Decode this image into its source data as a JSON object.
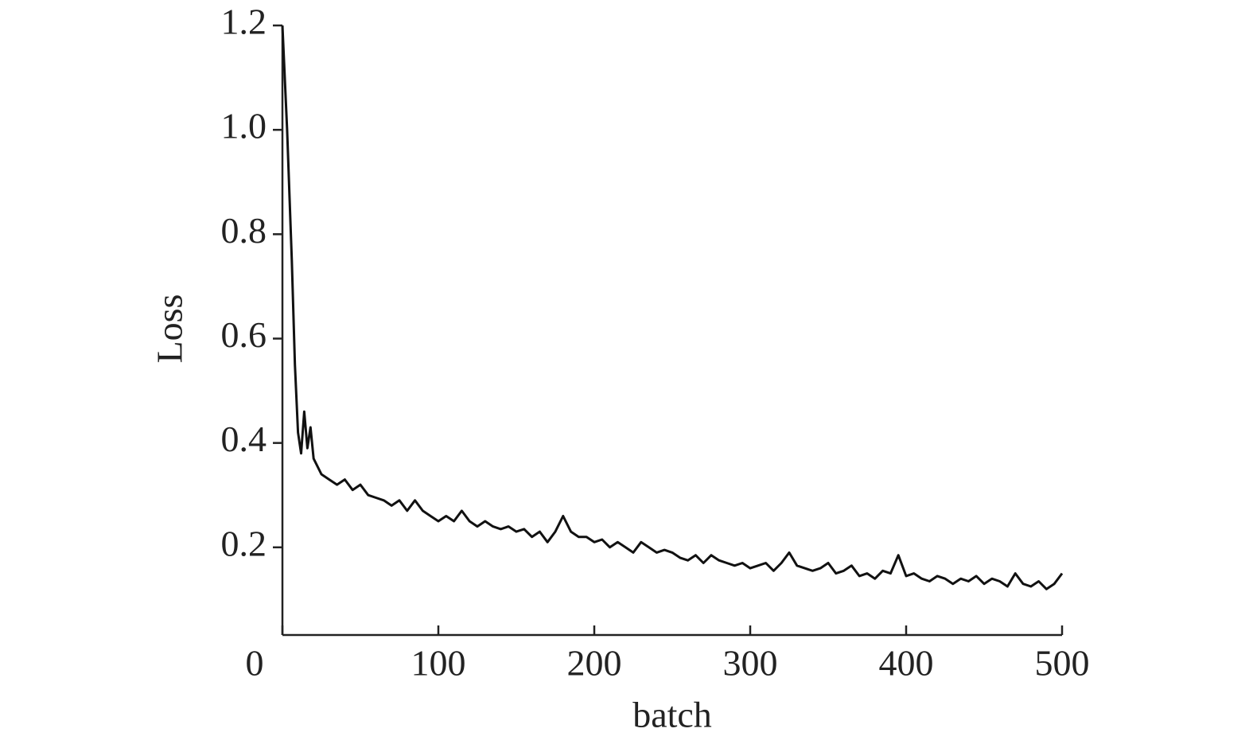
{
  "chart_data": {
    "type": "line",
    "xlabel": "batch",
    "ylabel": "Loss",
    "color": "#111111",
    "x": [
      0,
      3,
      6,
      8,
      10,
      12,
      14,
      16,
      18,
      20,
      25,
      30,
      35,
      40,
      45,
      50,
      55,
      60,
      65,
      70,
      75,
      80,
      85,
      90,
      95,
      100,
      105,
      110,
      115,
      120,
      125,
      130,
      135,
      140,
      145,
      150,
      155,
      160,
      165,
      170,
      175,
      180,
      185,
      190,
      195,
      200,
      205,
      210,
      215,
      220,
      225,
      230,
      235,
      240,
      245,
      250,
      255,
      260,
      265,
      270,
      275,
      280,
      285,
      290,
      295,
      300,
      305,
      310,
      315,
      320,
      325,
      330,
      335,
      340,
      345,
      350,
      355,
      360,
      365,
      370,
      375,
      380,
      385,
      390,
      395,
      400,
      405,
      410,
      415,
      420,
      425,
      430,
      435,
      440,
      445,
      450,
      455,
      460,
      465,
      470,
      475,
      480,
      485,
      490,
      495,
      500
    ],
    "values": [
      1.2,
      1.0,
      0.75,
      0.55,
      0.42,
      0.38,
      0.46,
      0.39,
      0.43,
      0.37,
      0.34,
      0.33,
      0.32,
      0.33,
      0.31,
      0.32,
      0.3,
      0.295,
      0.29,
      0.28,
      0.29,
      0.27,
      0.29,
      0.27,
      0.26,
      0.25,
      0.26,
      0.25,
      0.27,
      0.25,
      0.24,
      0.25,
      0.24,
      0.235,
      0.24,
      0.23,
      0.235,
      0.22,
      0.23,
      0.21,
      0.23,
      0.26,
      0.23,
      0.22,
      0.22,
      0.21,
      0.215,
      0.2,
      0.21,
      0.2,
      0.19,
      0.21,
      0.2,
      0.19,
      0.195,
      0.19,
      0.18,
      0.175,
      0.185,
      0.17,
      0.185,
      0.175,
      0.17,
      0.165,
      0.17,
      0.16,
      0.165,
      0.17,
      0.155,
      0.17,
      0.19,
      0.165,
      0.16,
      0.155,
      0.16,
      0.17,
      0.15,
      0.155,
      0.165,
      0.145,
      0.15,
      0.14,
      0.155,
      0.15,
      0.185,
      0.145,
      0.15,
      0.14,
      0.135,
      0.145,
      0.14,
      0.13,
      0.14,
      0.135,
      0.145,
      0.13,
      0.14,
      0.135,
      0.125,
      0.15,
      0.13,
      0.125,
      0.135,
      0.12,
      0.13,
      0.15
    ],
    "xlim": [
      0,
      500
    ],
    "xticks": [
      0,
      100,
      200,
      300,
      400,
      500
    ],
    "ylim": [
      0.032,
      1.2
    ],
    "yticks": [
      0.2,
      0.4,
      0.6,
      0.8,
      {
        "value": 1,
        "label": "1.0"
      },
      1.2
    ]
  }
}
